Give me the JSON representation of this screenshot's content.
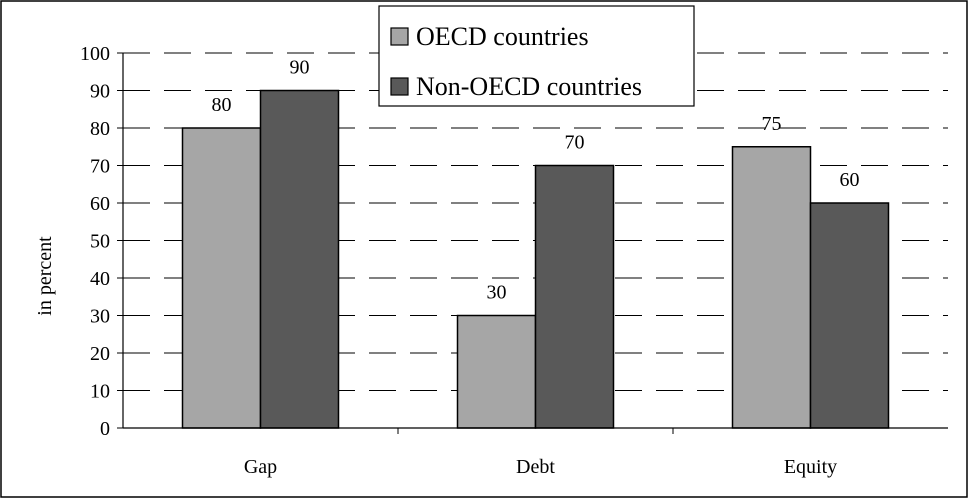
{
  "chart_data": {
    "type": "bar",
    "categories": [
      "Gap",
      "Debt",
      "Equity"
    ],
    "series": [
      {
        "name": "OECD countries",
        "values": [
          80,
          30,
          75
        ],
        "color": "#a6a6a6"
      },
      {
        "name": "Non-OECD countries",
        "values": [
          90,
          70,
          60
        ],
        "color": "#595959"
      }
    ],
    "title": "",
    "xlabel": "",
    "ylabel": "in percent",
    "ylim": [
      0,
      100
    ],
    "yticks": [
      0,
      10,
      20,
      30,
      40,
      50,
      60,
      70,
      80,
      90,
      100
    ],
    "grid": true,
    "legend_placement": "top-center",
    "data_labels": true
  }
}
